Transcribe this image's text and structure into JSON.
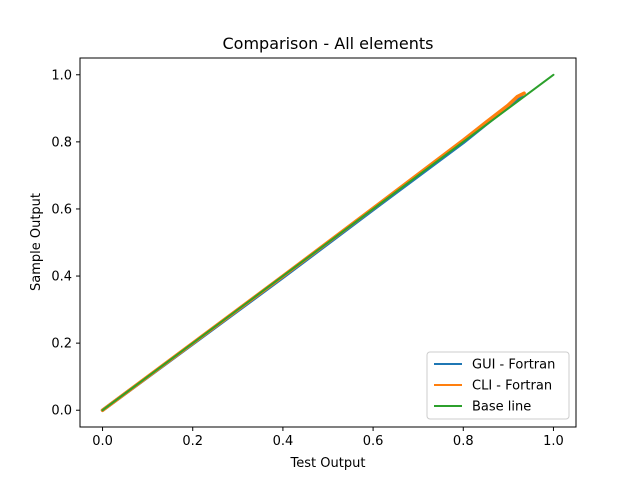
{
  "chart_data": {
    "type": "line",
    "title": "Comparison - All elements",
    "xlabel": "Test Output",
    "ylabel": "Sample Output",
    "xlim": [
      -0.05,
      1.05
    ],
    "ylim": [
      -0.05,
      1.05
    ],
    "xticks": [
      "0.0",
      "0.2",
      "0.4",
      "0.6",
      "0.8",
      "1.0"
    ],
    "yticks": [
      "0.0",
      "0.2",
      "0.4",
      "0.6",
      "0.8",
      "1.0"
    ],
    "grid": false,
    "legend_position": "bottom-right",
    "series": [
      {
        "name": "GUI - Fortran",
        "color": "#1f77b4",
        "x": [
          0.0,
          0.2,
          0.4,
          0.6,
          0.8,
          0.85,
          0.9,
          0.93
        ],
        "y": [
          0.0,
          0.198,
          0.396,
          0.598,
          0.798,
          0.852,
          0.905,
          0.94
        ]
      },
      {
        "name": "CLI - Fortran",
        "color": "#ff7f0e",
        "x": [
          0.0,
          0.2,
          0.4,
          0.6,
          0.8,
          0.85,
          0.9,
          0.92,
          0.935
        ],
        "y": [
          0.0,
          0.2,
          0.4,
          0.602,
          0.805,
          0.858,
          0.91,
          0.935,
          0.945
        ]
      },
      {
        "name": "Base line",
        "color": "#2ca02c",
        "x": [
          0.0,
          1.0
        ],
        "y": [
          0.0,
          1.0
        ]
      }
    ]
  }
}
